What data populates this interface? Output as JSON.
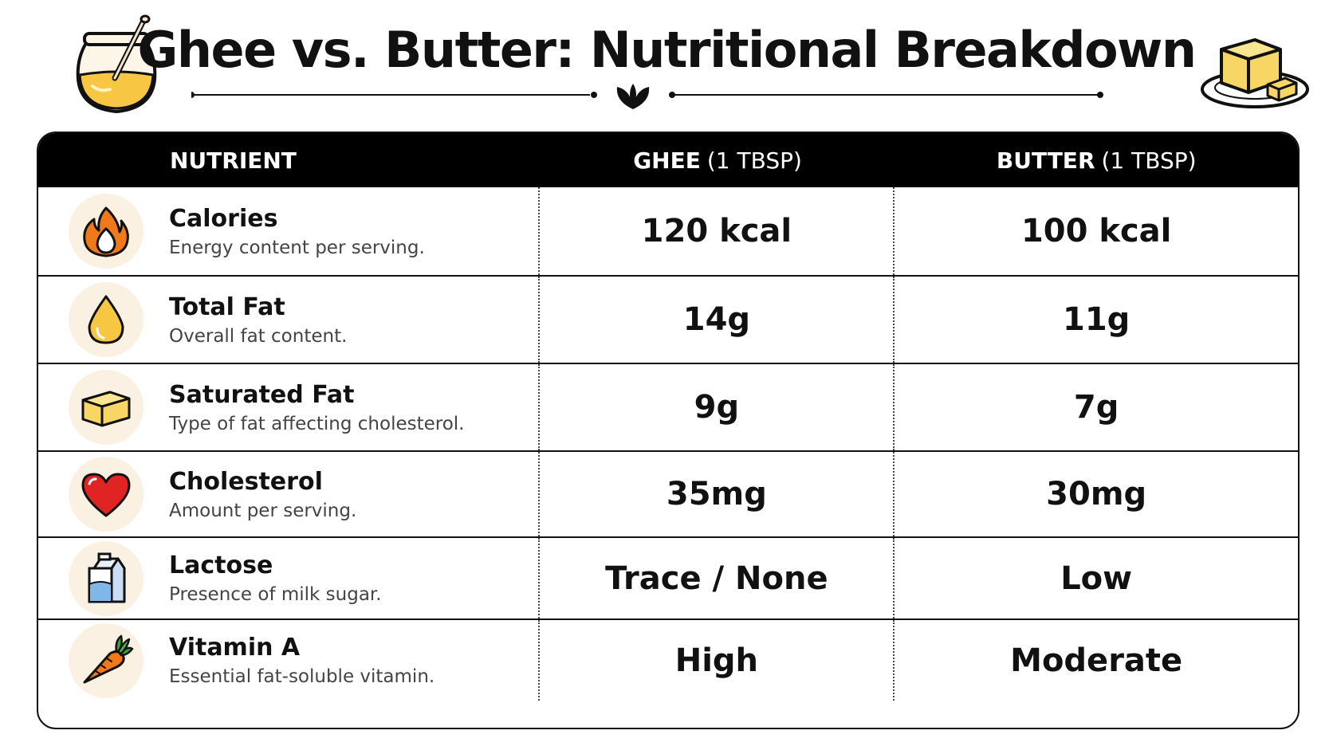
{
  "title": "Ghee vs. Butter: Nutritional Breakdown",
  "decor": {
    "left_icon": "ghee-jar-icon",
    "right_icon": "butter-block-icon",
    "divider_icon": "leaf-sprout-icon"
  },
  "table": {
    "headers": {
      "nutrient": "NUTRIENT",
      "ghee": "GHEE",
      "ghee_unit": "(1 TBSP)",
      "butter": "BUTTER",
      "butter_unit": "(1 TBSP)"
    },
    "rows": [
      {
        "icon": "flame-icon",
        "name": "Calories",
        "description": "Energy content per serving.",
        "ghee": "120 kcal",
        "butter": "100 kcal"
      },
      {
        "icon": "drop-icon",
        "name": "Total Fat",
        "description": "Overall fat content.",
        "ghee": "14g",
        "butter": "11g"
      },
      {
        "icon": "butter-cube-icon",
        "name": "Saturated Fat",
        "description": "Type of fat affecting cholesterol.",
        "ghee": "9g",
        "butter": "7g"
      },
      {
        "icon": "heart-icon",
        "name": "Cholesterol",
        "description": "Amount per serving.",
        "ghee": "35mg",
        "butter": "30mg"
      },
      {
        "icon": "milk-carton-icon",
        "name": "Lactose",
        "description": "Presence of milk sugar.",
        "ghee": "Trace / None",
        "butter": "Low"
      },
      {
        "icon": "carrot-icon",
        "name": "Vitamin A",
        "description": "Essential fat-soluble vitamin.",
        "ghee": "High",
        "butter": "Moderate"
      }
    ]
  },
  "colors": {
    "header_bg": "#000000",
    "icon_circle": "#fbf1e2",
    "flame": "#f07a1a",
    "ghee_gold": "#f7c744",
    "heart": "#e02424",
    "carrot": "#f07a1a"
  }
}
